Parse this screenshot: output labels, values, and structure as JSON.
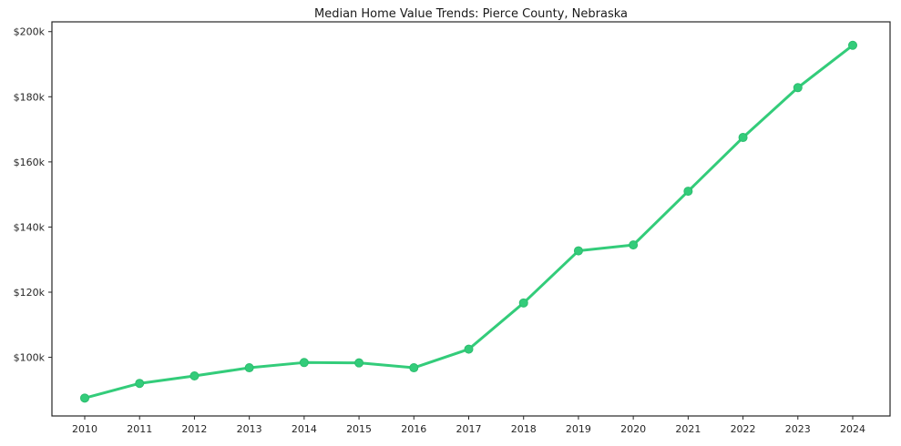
{
  "chart_data": {
    "type": "line",
    "title": "Median Home Value Trends: Pierce County, Nebraska",
    "xlabel": "",
    "ylabel": "",
    "x": [
      2010,
      2011,
      2012,
      2013,
      2014,
      2015,
      2016,
      2017,
      2018,
      2019,
      2020,
      2021,
      2022,
      2023,
      2024
    ],
    "x_tick_labels": [
      "2010",
      "2011",
      "2012",
      "2013",
      "2014",
      "2015",
      "2016",
      "2017",
      "2018",
      "2019",
      "2020",
      "2021",
      "2022",
      "2023",
      "2024"
    ],
    "series": [
      {
        "name": "Median Home Value",
        "values": [
          87500,
          92000,
          94300,
          96800,
          98400,
          98300,
          96800,
          102500,
          116700,
          132700,
          134500,
          151000,
          167500,
          182800,
          195800
        ]
      }
    ],
    "y_tick_values": [
      100000,
      120000,
      140000,
      160000,
      180000,
      200000
    ],
    "y_tick_labels": [
      "$100k",
      "$120k",
      "$140k",
      "$160k",
      "$180k",
      "$200k"
    ],
    "ylim": [
      82000,
      203000
    ],
    "grid": false,
    "legend": "none",
    "line_color": "#33cc7a",
    "marker_color": "#33cc7a",
    "marker_edge_color": "#2bbd6e",
    "axis_color": "#262626"
  }
}
